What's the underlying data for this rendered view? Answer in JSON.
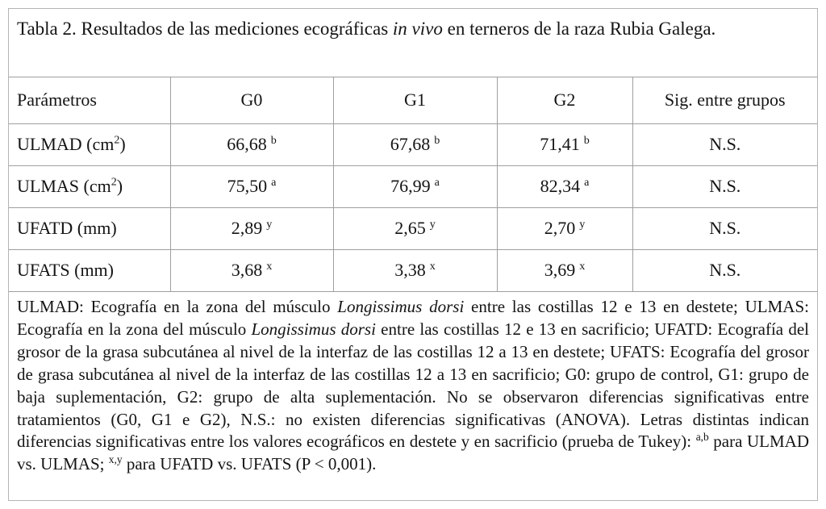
{
  "page": {
    "background_color": "#ffffff",
    "border_color": "#b4b4b4",
    "grid_line_color": "#9f9f9f",
    "text_color": "#141414"
  },
  "title": {
    "segments": [
      {
        "t": "Tabla 2. Resultados de las mediciones ecográficas "
      },
      {
        "t": "in vivo",
        "i": true
      },
      {
        "t": " en terneros de la raza Rubia Galega."
      }
    ]
  },
  "table": {
    "columns": [
      "Parámetros",
      "G0",
      "G1",
      "G2",
      "Sig. entre grupos"
    ],
    "rows": [
      {
        "param": [
          {
            "t": "ULMAD (cm"
          },
          {
            "t": "2",
            "sup": true
          },
          {
            "t": ")"
          }
        ],
        "values": [
          {
            "v": "66,68",
            "sup": "b"
          },
          {
            "v": "67,68",
            "sup": "b"
          },
          {
            "v": "71,41",
            "sup": "b"
          }
        ],
        "sig": "N.S."
      },
      {
        "param": [
          {
            "t": "ULMAS (cm"
          },
          {
            "t": "2",
            "sup": true
          },
          {
            "t": ")"
          }
        ],
        "values": [
          {
            "v": "75,50",
            "sup": "a"
          },
          {
            "v": "76,99",
            "sup": "a"
          },
          {
            "v": "82,34",
            "sup": "a"
          }
        ],
        "sig": "N.S."
      },
      {
        "param": [
          {
            "t": "UFATD (mm)"
          }
        ],
        "values": [
          {
            "v": "2,89",
            "sup": "y"
          },
          {
            "v": "2,65",
            "sup": "y"
          },
          {
            "v": "2,70",
            "sup": "y"
          }
        ],
        "sig": "N.S."
      },
      {
        "param": [
          {
            "t": "UFATS (mm)"
          }
        ],
        "values": [
          {
            "v": "3,68",
            "sup": "x"
          },
          {
            "v": "3,38",
            "sup": "x"
          },
          {
            "v": "3,69",
            "sup": "x"
          }
        ],
        "sig": "N.S."
      }
    ]
  },
  "footnote": {
    "segments": [
      {
        "t": "ULMAD: Ecografía en la zona del músculo "
      },
      {
        "t": "Longissimus dorsi",
        "i": true
      },
      {
        "t": " entre las costillas 12 e 13 en destete; ULMAS: Ecografía en la zona del músculo "
      },
      {
        "t": "Longissimus dorsi",
        "i": true
      },
      {
        "t": " entre las costillas 12 e 13 en sacrificio; UFATD: Ecografía del grosor de la grasa subcutánea al nivel de la interfaz de las costillas 12 a 13 en destete; UFATS: Ecografía del grosor de grasa subcutánea al nivel de la interfaz de las costillas 12 a 13 en sacrificio; G0: grupo de control, G1: grupo de baja suplementación, G2: grupo de alta suplementación. No se observaron diferencias significativas entre tratamientos (G0, G1 e G2), N.S.: no existen diferencias significativas (ANOVA). Letras distintas indican diferencias significativas entre los valores ecográficos en destete y en sacrificio (prueba de Tukey): "
      },
      {
        "t": "a,b",
        "sup": true
      },
      {
        "t": " para ULMAD vs. ULMAS; "
      },
      {
        "t": "x,y",
        "sup": true
      },
      {
        "t": " para UFATD vs. UFATS (P < 0,001)."
      }
    ]
  }
}
